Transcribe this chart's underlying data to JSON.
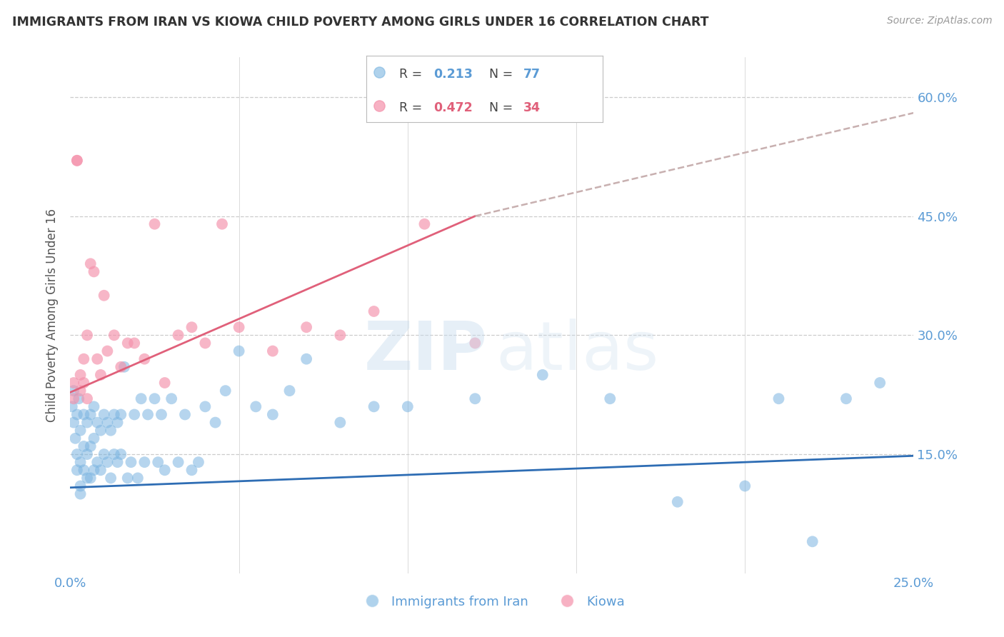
{
  "title": "IMMIGRANTS FROM IRAN VS KIOWA CHILD POVERTY AMONG GIRLS UNDER 16 CORRELATION CHART",
  "source": "Source: ZipAtlas.com",
  "ylabel": "Child Poverty Among Girls Under 16",
  "xlim": [
    0.0,
    0.25
  ],
  "ylim": [
    0.0,
    0.65
  ],
  "iran_color": "#7ab4e0",
  "kiowa_color": "#f490aa",
  "iran_line_color": "#2e6db4",
  "kiowa_line_color": "#e0607a",
  "dash_color": "#c8b0b0",
  "background_color": "#ffffff",
  "grid_color": "#cccccc",
  "tick_label_color": "#5b9bd5",
  "title_color": "#333333",
  "source_color": "#999999",
  "ylabel_color": "#555555",
  "legend_R1": "0.213",
  "legend_N1": "77",
  "legend_R2": "0.472",
  "legend_N2": "34",
  "legend_color1": "#5b9bd5",
  "legend_color2": "#e0607a",
  "iran_x": [
    0.0005,
    0.001,
    0.001,
    0.0015,
    0.002,
    0.002,
    0.002,
    0.0025,
    0.003,
    0.003,
    0.003,
    0.003,
    0.004,
    0.004,
    0.004,
    0.005,
    0.005,
    0.005,
    0.006,
    0.006,
    0.006,
    0.007,
    0.007,
    0.007,
    0.008,
    0.008,
    0.009,
    0.009,
    0.01,
    0.01,
    0.011,
    0.011,
    0.012,
    0.012,
    0.013,
    0.013,
    0.014,
    0.014,
    0.015,
    0.015,
    0.016,
    0.017,
    0.018,
    0.019,
    0.02,
    0.021,
    0.022,
    0.023,
    0.025,
    0.026,
    0.027,
    0.028,
    0.03,
    0.032,
    0.034,
    0.036,
    0.038,
    0.04,
    0.043,
    0.046,
    0.05,
    0.055,
    0.06,
    0.065,
    0.07,
    0.08,
    0.09,
    0.1,
    0.12,
    0.14,
    0.16,
    0.18,
    0.2,
    0.21,
    0.22,
    0.23,
    0.24
  ],
  "iran_y": [
    0.21,
    0.19,
    0.23,
    0.17,
    0.2,
    0.15,
    0.13,
    0.22,
    0.18,
    0.14,
    0.11,
    0.1,
    0.2,
    0.16,
    0.13,
    0.19,
    0.15,
    0.12,
    0.2,
    0.16,
    0.12,
    0.21,
    0.17,
    0.13,
    0.19,
    0.14,
    0.18,
    0.13,
    0.2,
    0.15,
    0.19,
    0.14,
    0.18,
    0.12,
    0.2,
    0.15,
    0.19,
    0.14,
    0.2,
    0.15,
    0.26,
    0.12,
    0.14,
    0.2,
    0.12,
    0.22,
    0.14,
    0.2,
    0.22,
    0.14,
    0.2,
    0.13,
    0.22,
    0.14,
    0.2,
    0.13,
    0.14,
    0.21,
    0.19,
    0.23,
    0.28,
    0.21,
    0.2,
    0.23,
    0.27,
    0.19,
    0.21,
    0.21,
    0.22,
    0.25,
    0.22,
    0.09,
    0.11,
    0.22,
    0.04,
    0.22,
    0.24
  ],
  "kiowa_x": [
    0.001,
    0.001,
    0.002,
    0.002,
    0.003,
    0.003,
    0.004,
    0.004,
    0.005,
    0.005,
    0.006,
    0.007,
    0.008,
    0.009,
    0.01,
    0.011,
    0.013,
    0.015,
    0.017,
    0.019,
    0.022,
    0.025,
    0.028,
    0.032,
    0.036,
    0.04,
    0.045,
    0.05,
    0.06,
    0.07,
    0.08,
    0.09,
    0.105,
    0.12
  ],
  "kiowa_y": [
    0.24,
    0.22,
    0.52,
    0.52,
    0.25,
    0.23,
    0.27,
    0.24,
    0.3,
    0.22,
    0.39,
    0.38,
    0.27,
    0.25,
    0.35,
    0.28,
    0.3,
    0.26,
    0.29,
    0.29,
    0.27,
    0.44,
    0.24,
    0.3,
    0.31,
    0.29,
    0.44,
    0.31,
    0.28,
    0.31,
    0.3,
    0.33,
    0.44,
    0.29
  ],
  "iran_trendline": [
    0.0,
    0.25,
    0.108,
    0.148
  ],
  "kiowa_trendline_solid": [
    0.0,
    0.12,
    0.228,
    0.45
  ],
  "kiowa_trendline_dash": [
    0.12,
    0.25,
    0.45,
    0.58
  ],
  "xtick_positions": [
    0.0,
    0.05,
    0.1,
    0.15,
    0.2,
    0.25
  ],
  "xtick_labels": [
    "0.0%",
    "",
    "",
    "",
    "",
    "25.0%"
  ],
  "ytick_positions": [
    0.15,
    0.3,
    0.45,
    0.6
  ],
  "ytick_labels": [
    "15.0%",
    "30.0%",
    "45.0%",
    "60.0%"
  ],
  "vline_positions": [
    0.05,
    0.1,
    0.15,
    0.2,
    0.25
  ],
  "hline_positions": [
    0.15,
    0.3,
    0.45,
    0.6
  ],
  "watermark_zip": "ZIP",
  "watermark_atlas": "atlas",
  "legend_label1": "Immigrants from Iran",
  "legend_label2": "Kiowa"
}
